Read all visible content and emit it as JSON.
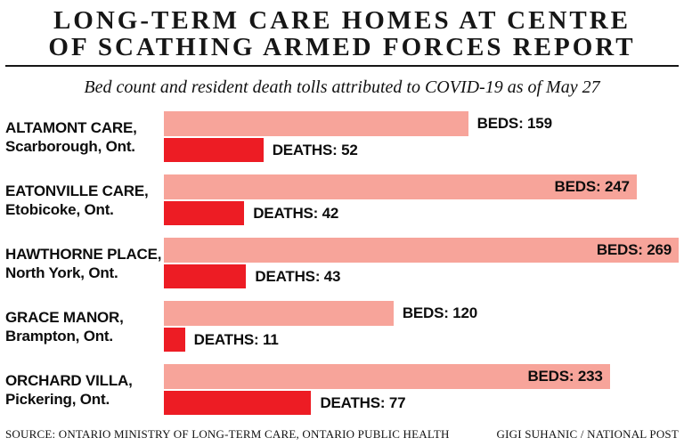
{
  "header": {
    "title_line1": "LONG-TERM CARE HOMES AT CENTRE",
    "title_line2": "OF SCATHING ARMED FORCES REPORT",
    "subtitle": "Bed count and resident death tolls attributed to COVID-19 as of May 27"
  },
  "chart_data": {
    "type": "bar",
    "orientation": "horizontal",
    "title": "LONG-TERM CARE HOMES AT CENTRE OF SCATHING ARMED FORCES REPORT",
    "subtitle": "Bed count and resident death tolls attributed to COVID-19 as of May 27",
    "value_axis_max": 269,
    "beds_label_prefix": "BEDS:",
    "deaths_label_prefix": "DEATHS:",
    "colors": {
      "beds_bar": "#f7a49a",
      "deaths_bar": "#ed1c24",
      "text": "#0d0d0d"
    },
    "categories": [
      "ALTAMONT CARE, Scarborough, Ont.",
      "EATONVILLE CARE, Etobicoke, Ont.",
      "HAWTHORNE PLACE, North York, Ont.",
      "GRACE MANOR, Brampton, Ont.",
      "ORCHARD VILLA, Pickering, Ont."
    ],
    "series": [
      {
        "name": "BEDS",
        "values": [
          159,
          247,
          269,
          120,
          233
        ]
      },
      {
        "name": "DEATHS",
        "values": [
          52,
          42,
          43,
          11,
          77
        ]
      }
    ],
    "rows": [
      {
        "facility": "ALTAMONT CARE,",
        "location": "Scarborough, Ont.",
        "beds": 159,
        "deaths": 52
      },
      {
        "facility": "EATONVILLE CARE,",
        "location": "Etobicoke, Ont.",
        "beds": 247,
        "deaths": 42
      },
      {
        "facility": "HAWTHORNE PLACE,",
        "location": "North York, Ont.",
        "beds": 269,
        "deaths": 43
      },
      {
        "facility": "GRACE MANOR,",
        "location": "Brampton, Ont.",
        "beds": 120,
        "deaths": 11
      },
      {
        "facility": "ORCHARD VILLA,",
        "location": "Pickering, Ont.",
        "beds": 233,
        "deaths": 77
      }
    ]
  },
  "footer": {
    "source": "SOURCE: ONTARIO MINISTRY OF LONG-TERM CARE, ONTARIO PUBLIC HEALTH",
    "credit": "GIGI SUHANIC / NATIONAL POST"
  }
}
